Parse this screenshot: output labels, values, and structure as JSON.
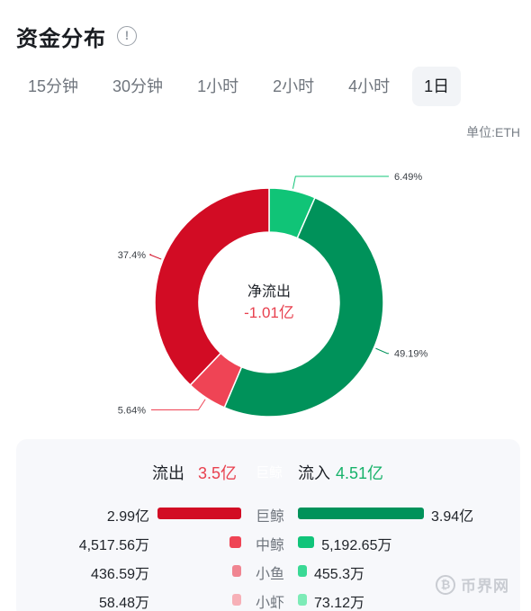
{
  "header": {
    "title": "资金分布",
    "info_icon": "info-circle-icon"
  },
  "tabs": [
    {
      "label": "15分钟",
      "active": false
    },
    {
      "label": "30分钟",
      "active": false
    },
    {
      "label": "1小时",
      "active": false
    },
    {
      "label": "2小时",
      "active": false
    },
    {
      "label": "4小时",
      "active": false
    },
    {
      "label": "1日",
      "active": true
    }
  ],
  "unit_label": "单位:ETH",
  "colors": {
    "big_out": "#d20c24",
    "mid_out": "#ef4455",
    "small_out": "#f08591",
    "tiny_out": "#f7b0b7",
    "big_in": "#00925a",
    "mid_in": "#11c47a",
    "small_in": "#3ad995",
    "tiny_in": "#7debb7"
  },
  "chart_data": {
    "type": "pie",
    "donut": true,
    "center_label": "净流出",
    "center_value": "-1.01亿",
    "slices": [
      {
        "label": "6.49%",
        "value": 6.49,
        "color": "#10c477"
      },
      {
        "label": "49.19%",
        "value": 49.19,
        "color": "#00925a"
      },
      {
        "label": "5.64%",
        "value": 5.64,
        "color": "#ef4455"
      },
      {
        "label": "37.4%",
        "value": 37.4,
        "color": "#d20c24"
      }
    ]
  },
  "summary": {
    "outflow_label": "流出",
    "outflow_value": "3.5亿",
    "mid_label": "巨鲸",
    "inflow_label": "流入",
    "inflow_value": "4.51亿"
  },
  "rows": [
    {
      "category": "巨鲸",
      "out_value": "2.99亿",
      "out_fraction": 0.76,
      "in_value": "3.94亿",
      "in_fraction": 1.0,
      "out_color": "#d20c24",
      "in_color": "#00925a"
    },
    {
      "category": "中鲸",
      "out_value": "4,517.56万",
      "out_fraction": 0.11,
      "in_value": "5,192.65万",
      "in_fraction": 0.13,
      "out_color": "#ef4455",
      "in_color": "#11c47a"
    },
    {
      "category": "小鱼",
      "out_value": "436.59万",
      "out_fraction": 0.011,
      "in_value": "455.3万",
      "in_fraction": 0.012,
      "out_color": "#f08591",
      "in_color": "#3ad995"
    },
    {
      "category": "小虾",
      "out_value": "58.48万",
      "out_fraction": 0.0015,
      "in_value": "73.12万",
      "in_fraction": 0.002,
      "out_color": "#f7b0b7",
      "in_color": "#7debb7"
    }
  ],
  "watermark": {
    "icon": "bitcoin-coin-icon",
    "text": "币界网"
  }
}
